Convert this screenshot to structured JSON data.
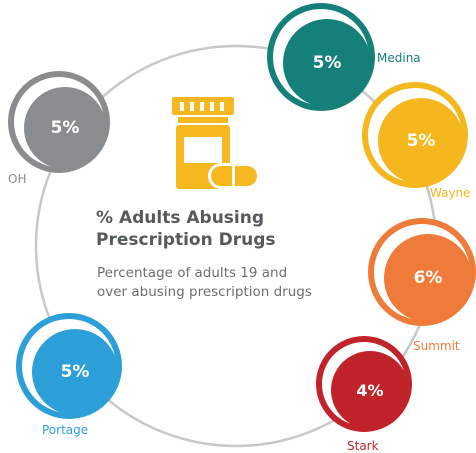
{
  "infographic": {
    "title_line1": "% Adults Abusing",
    "title_line2": "Prescription Drugs",
    "subtitle_line1": "Percentage of adults 19 and",
    "subtitle_line2": "over abusing prescription drugs",
    "icon": "pill-bottle-icon",
    "colors": {
      "ring": "#c6c8ca",
      "icon": "#f7b71f"
    },
    "regions": [
      {
        "name": "OH",
        "value": "5%",
        "color": "#8a8d90"
      },
      {
        "name": "Medina",
        "value": "5%",
        "color": "#157f79"
      },
      {
        "name": "Wayne",
        "value": "5%",
        "color": "#f4b71e"
      },
      {
        "name": "Summit",
        "value": "6%",
        "color": "#ef7b3a"
      },
      {
        "name": "Stark",
        "value": "4%",
        "color": "#c1232b"
      },
      {
        "name": "Portage",
        "value": "5%",
        "color": "#2c9fd8"
      }
    ]
  }
}
